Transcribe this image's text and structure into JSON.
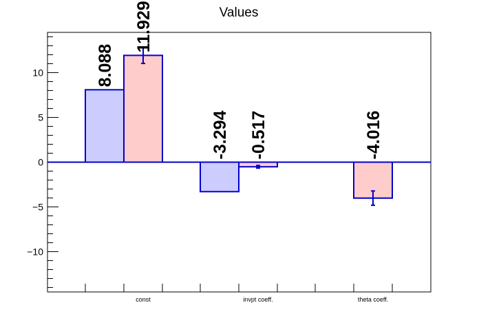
{
  "chart_data": {
    "type": "bar",
    "title": "Values",
    "xlabel": "",
    "ylabel": "",
    "categories": [
      "const",
      "invpt coeff.",
      "theta coeff."
    ],
    "ylim": [
      -14.5,
      14.5
    ],
    "yticks": [
      -10,
      -5,
      0,
      5,
      10
    ],
    "yticks_labels": [
      "−10",
      "−5",
      "0",
      "5",
      "10"
    ],
    "grid": false,
    "legend": "none",
    "series": [
      {
        "values": [
          8.088,
          -3.294,
          null
        ],
        "errors": [
          null,
          null,
          null
        ],
        "labels": [
          "8.088",
          "-3.294",
          ""
        ],
        "fill": "#ccccff",
        "stroke": "#0000cc"
      },
      {
        "values": [
          11.929,
          -0.517,
          -4.016
        ],
        "errors": [
          0.9,
          0.15,
          0.8
        ],
        "labels": [
          "11.929",
          "-0.517",
          "-4.016"
        ],
        "fill": "#ffcccc",
        "stroke": "#0000cc"
      }
    ],
    "colors": {
      "axis": "#000000",
      "zero_line": "#0000cc",
      "error_bar": "#0000cc"
    }
  }
}
